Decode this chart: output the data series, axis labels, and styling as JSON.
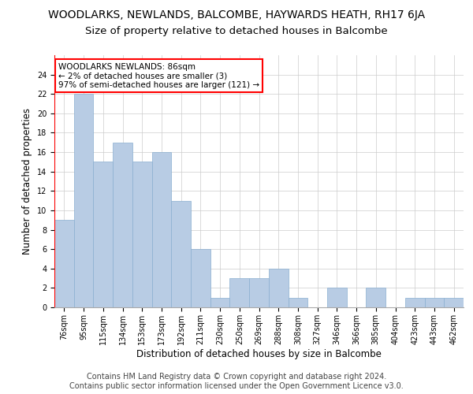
{
  "title": "WOODLARKS, NEWLANDS, BALCOMBE, HAYWARDS HEATH, RH17 6JA",
  "subtitle": "Size of property relative to detached houses in Balcombe",
  "xlabel": "Distribution of detached houses by size in Balcombe",
  "ylabel": "Number of detached properties",
  "categories": [
    "76sqm",
    "95sqm",
    "115sqm",
    "134sqm",
    "153sqm",
    "173sqm",
    "192sqm",
    "211sqm",
    "230sqm",
    "250sqm",
    "269sqm",
    "288sqm",
    "308sqm",
    "327sqm",
    "346sqm",
    "366sqm",
    "385sqm",
    "404sqm",
    "423sqm",
    "443sqm",
    "462sqm"
  ],
  "values": [
    9,
    22,
    15,
    17,
    15,
    16,
    11,
    6,
    1,
    3,
    3,
    4,
    1,
    0,
    2,
    0,
    2,
    0,
    1,
    1,
    1
  ],
  "bar_color": "#b8cce4",
  "bar_edge_color": "#8aafd0",
  "highlight_color": "#ff0000",
  "annotation_text": "WOODLARKS NEWLANDS: 86sqm\n← 2% of detached houses are smaller (3)\n97% of semi-detached houses are larger (121) →",
  "annotation_box_color": "#ff0000",
  "ylim": [
    0,
    26
  ],
  "yticks": [
    0,
    2,
    4,
    6,
    8,
    10,
    12,
    14,
    16,
    18,
    20,
    22,
    24
  ],
  "grid_color": "#cccccc",
  "bg_color": "#ffffff",
  "footer_line1": "Contains HM Land Registry data © Crown copyright and database right 2024.",
  "footer_line2": "Contains public sector information licensed under the Open Government Licence v3.0.",
  "title_fontsize": 10,
  "subtitle_fontsize": 9.5,
  "tick_fontsize": 7,
  "label_fontsize": 8.5,
  "footer_fontsize": 7
}
